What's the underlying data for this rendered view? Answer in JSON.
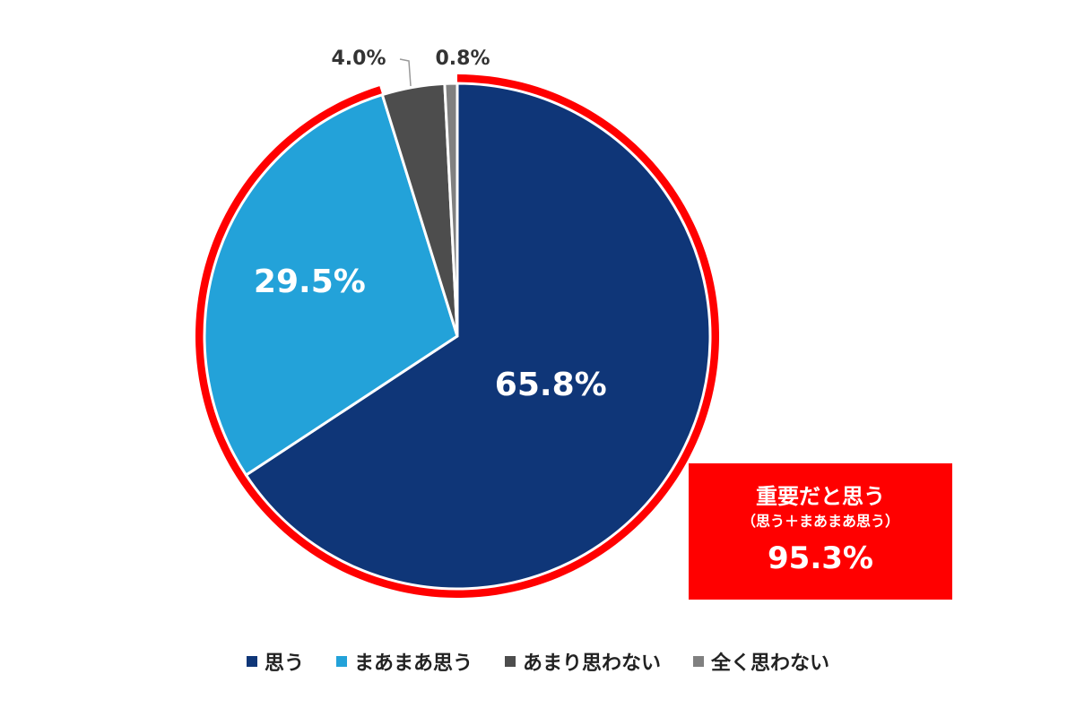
{
  "chart_data": {
    "type": "pie",
    "start_angle_deg": 0,
    "direction": "clockwise",
    "slices": [
      {
        "name": "思う",
        "value": 65.8,
        "label": "65.8%",
        "color": "#0f3678",
        "label_color": "#ffffff",
        "label_position": "inside"
      },
      {
        "name": "まあまあ思う",
        "value": 29.5,
        "label": "29.5%",
        "color": "#23a2d9",
        "label_color": "#ffffff",
        "label_position": "inside"
      },
      {
        "name": "あまり思わない",
        "value": 4.0,
        "label": "4.0%",
        "color": "#4d4d4d",
        "label_color": "#333333",
        "label_position": "outside"
      },
      {
        "name": "全く思わない",
        "value": 0.8,
        "label": "0.8%",
        "color": "#808080",
        "label_color": "#333333",
        "label_position": "outside"
      }
    ],
    "highlight": {
      "slices": [
        "思う",
        "まあまあ思う"
      ],
      "ring_color": "#ff0000"
    },
    "legend_position": "bottom"
  },
  "callout": {
    "title": "重要だと思う",
    "subtitle": "（思う＋まあまあ思う）",
    "value": "95.3%",
    "color": "#ff0000"
  }
}
